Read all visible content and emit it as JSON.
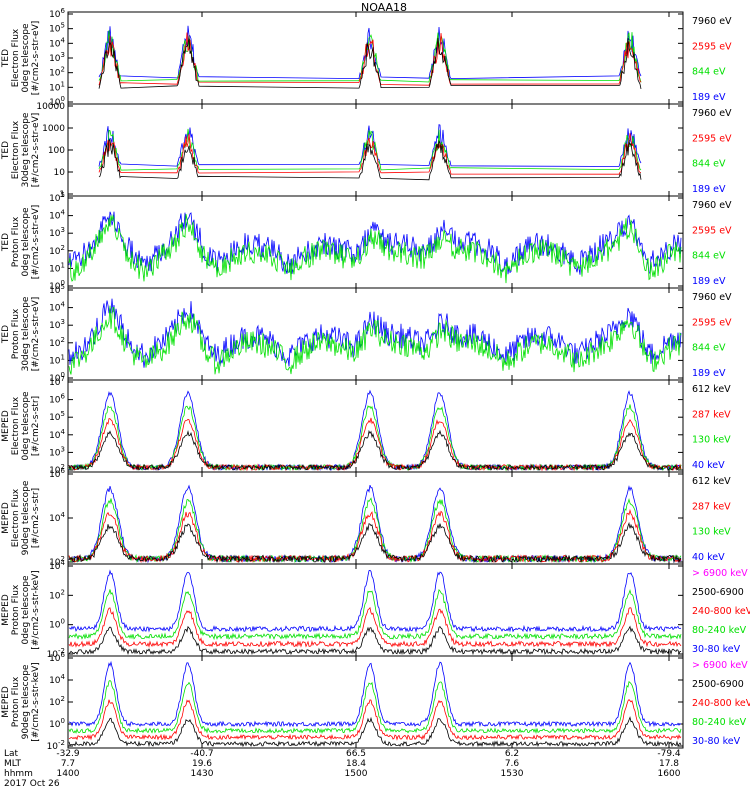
{
  "title": "NOAA18",
  "colors": {
    "blue": "#0000ff",
    "red": "#ff0000",
    "green": "#00e000",
    "black": "#000000",
    "magenta": "#ff00ff"
  },
  "footer": {
    "row_labels": [
      "Lat",
      "MLT",
      "hhmm",
      "2017 Oct 26"
    ],
    "columns": [
      {
        "lat": "-32.9",
        "mlt": "7.7",
        "hhmm": "1400"
      },
      {
        "lat": "-40.7",
        "mlt": "19.6",
        "hhmm": "1430"
      },
      {
        "lat": "66.5",
        "mlt": "18.4",
        "hhmm": "1500"
      },
      {
        "lat": "6.2",
        "mlt": "7.6",
        "hhmm": "1530"
      },
      {
        "lat": "-79.4",
        "mlt": "17.8",
        "hhmm": "1600"
      }
    ]
  },
  "chart_data": [
    {
      "type": "line",
      "name": "TED Electron Flux 0deg telescope",
      "ylabel": [
        "TED",
        "Electron Flux",
        "0deg telescope",
        "[#/cm2-s-str-eV]"
      ],
      "ylog": [
        0,
        6
      ],
      "yticks": [
        "10^0",
        "10^1",
        "10^2",
        "10^3",
        "10^4",
        "10^5",
        "10^6"
      ],
      "legend": [
        {
          "label": "7960 eV",
          "color": "#000000"
        },
        {
          "label": "2595 eV",
          "color": "#ff0000"
        },
        {
          "label": "844 eV",
          "color": "#00e000"
        },
        {
          "label": "189 eV",
          "color": "#0000ff"
        }
      ]
    },
    {
      "type": "line",
      "name": "TED Electron Flux 30deg telescope",
      "ylabel": [
        "TED",
        "Electron Flux",
        "30deg telescope",
        "[#/cm2-s-str-eV]"
      ],
      "ylog": [
        0,
        4
      ],
      "yticks": [
        "1",
        "10",
        "100",
        "1000",
        "10000"
      ],
      "legend": [
        {
          "label": "7960 eV",
          "color": "#000000"
        },
        {
          "label": "2595 eV",
          "color": "#ff0000"
        },
        {
          "label": "844 eV",
          "color": "#00e000"
        },
        {
          "label": "189 eV",
          "color": "#0000ff"
        }
      ]
    },
    {
      "type": "line",
      "name": "TED Proton Flux 0deg telescope",
      "ylabel": [
        "TED",
        "Proton Flux",
        "0deg telescope",
        "[#/cm2-s-str-eV]"
      ],
      "ylog": [
        0,
        5
      ],
      "yticks": [
        "10^0",
        "10^1",
        "10^2",
        "10^3",
        "10^4",
        "10^5"
      ],
      "legend": [
        {
          "label": "7960 eV",
          "color": "#000000"
        },
        {
          "label": "2595 eV",
          "color": "#ff0000"
        },
        {
          "label": "844 eV",
          "color": "#00e000"
        },
        {
          "label": "189 eV",
          "color": "#0000ff"
        }
      ]
    },
    {
      "type": "line",
      "name": "TED Proton Flux 30deg telescope",
      "ylabel": [
        "TED",
        "Proton Flux",
        "30deg telescope",
        "[#/cm2-s-str-eV]"
      ],
      "ylog": [
        0,
        5
      ],
      "yticks": [
        "10^0",
        "10^1",
        "10^2",
        "10^3",
        "10^4",
        "10^5"
      ],
      "legend": [
        {
          "label": "7960 eV",
          "color": "#000000"
        },
        {
          "label": "2595 eV",
          "color": "#ff0000"
        },
        {
          "label": "844 eV",
          "color": "#00e000"
        },
        {
          "label": "189 eV",
          "color": "#0000ff"
        }
      ]
    },
    {
      "type": "line",
      "name": "MEPED Electron Flux 0deg telescope",
      "ylabel": [
        "MEPED",
        "Electron Flux",
        "0deg telescope",
        "[#/cm2-s-str]"
      ],
      "ylog": [
        2,
        7
      ],
      "yticks": [
        "10^2",
        "10^3",
        "10^4",
        "10^5",
        "10^6",
        "10^7"
      ],
      "legend": [
        {
          "label": "612 keV",
          "color": "#000000"
        },
        {
          "label": "287 keV",
          "color": "#ff0000"
        },
        {
          "label": "130 keV",
          "color": "#00e000"
        },
        {
          "label": "40 keV",
          "color": "#0000ff"
        }
      ]
    },
    {
      "type": "line",
      "name": "MEPED Electron Flux 90deg telescope",
      "ylabel": [
        "MEPED",
        "Electron Flux",
        "90deg telescope",
        "[#/cm2-s-str]"
      ],
      "ylog": [
        2,
        6
      ],
      "yticks": [
        "10^2",
        "10^4",
        "10^6"
      ],
      "legend": [
        {
          "label": "612 keV",
          "color": "#000000"
        },
        {
          "label": "287 keV",
          "color": "#ff0000"
        },
        {
          "label": "130 keV",
          "color": "#00e000"
        },
        {
          "label": "40 keV",
          "color": "#0000ff"
        }
      ]
    },
    {
      "type": "line",
      "name": "MEPED Proton Flux 0deg telescope",
      "ylabel": [
        "MEPED",
        "Proton Flux",
        "0deg telescope",
        "[#/cm2-s-str-keV]"
      ],
      "ylog": [
        -2,
        5
      ],
      "yticks": [
        "10^-2",
        "10^0",
        "10^2",
        "10^4"
      ],
      "legend": [
        {
          "label": "> 6900 keV",
          "color": "#ff00ff"
        },
        {
          "label": "2500-6900",
          "color": "#000000"
        },
        {
          "label": "240-800 keV",
          "color": "#ff0000"
        },
        {
          "label": "80-240 keV",
          "color": "#00e000"
        },
        {
          "label": "30-80 keV",
          "color": "#0000ff"
        }
      ]
    },
    {
      "type": "line",
      "name": "MEPED Proton Flux 90deg telescope",
      "ylabel": [
        "MEPED",
        "Proton Flux",
        "90deg telescope",
        "[#/cm2-s-str-keV]"
      ],
      "ylog": [
        -2,
        6
      ],
      "yticks": [
        "10^-2",
        "10^0",
        "10^2",
        "10^4",
        "10^6"
      ],
      "legend": [
        {
          "label": "> 6900 keV",
          "color": "#ff00ff"
        },
        {
          "label": "2500-6900",
          "color": "#000000"
        },
        {
          "label": "240-800 keV",
          "color": "#ff0000"
        },
        {
          "label": "80-240 keV",
          "color": "#00e000"
        },
        {
          "label": "30-80 keV",
          "color": "#0000ff"
        }
      ]
    }
  ]
}
